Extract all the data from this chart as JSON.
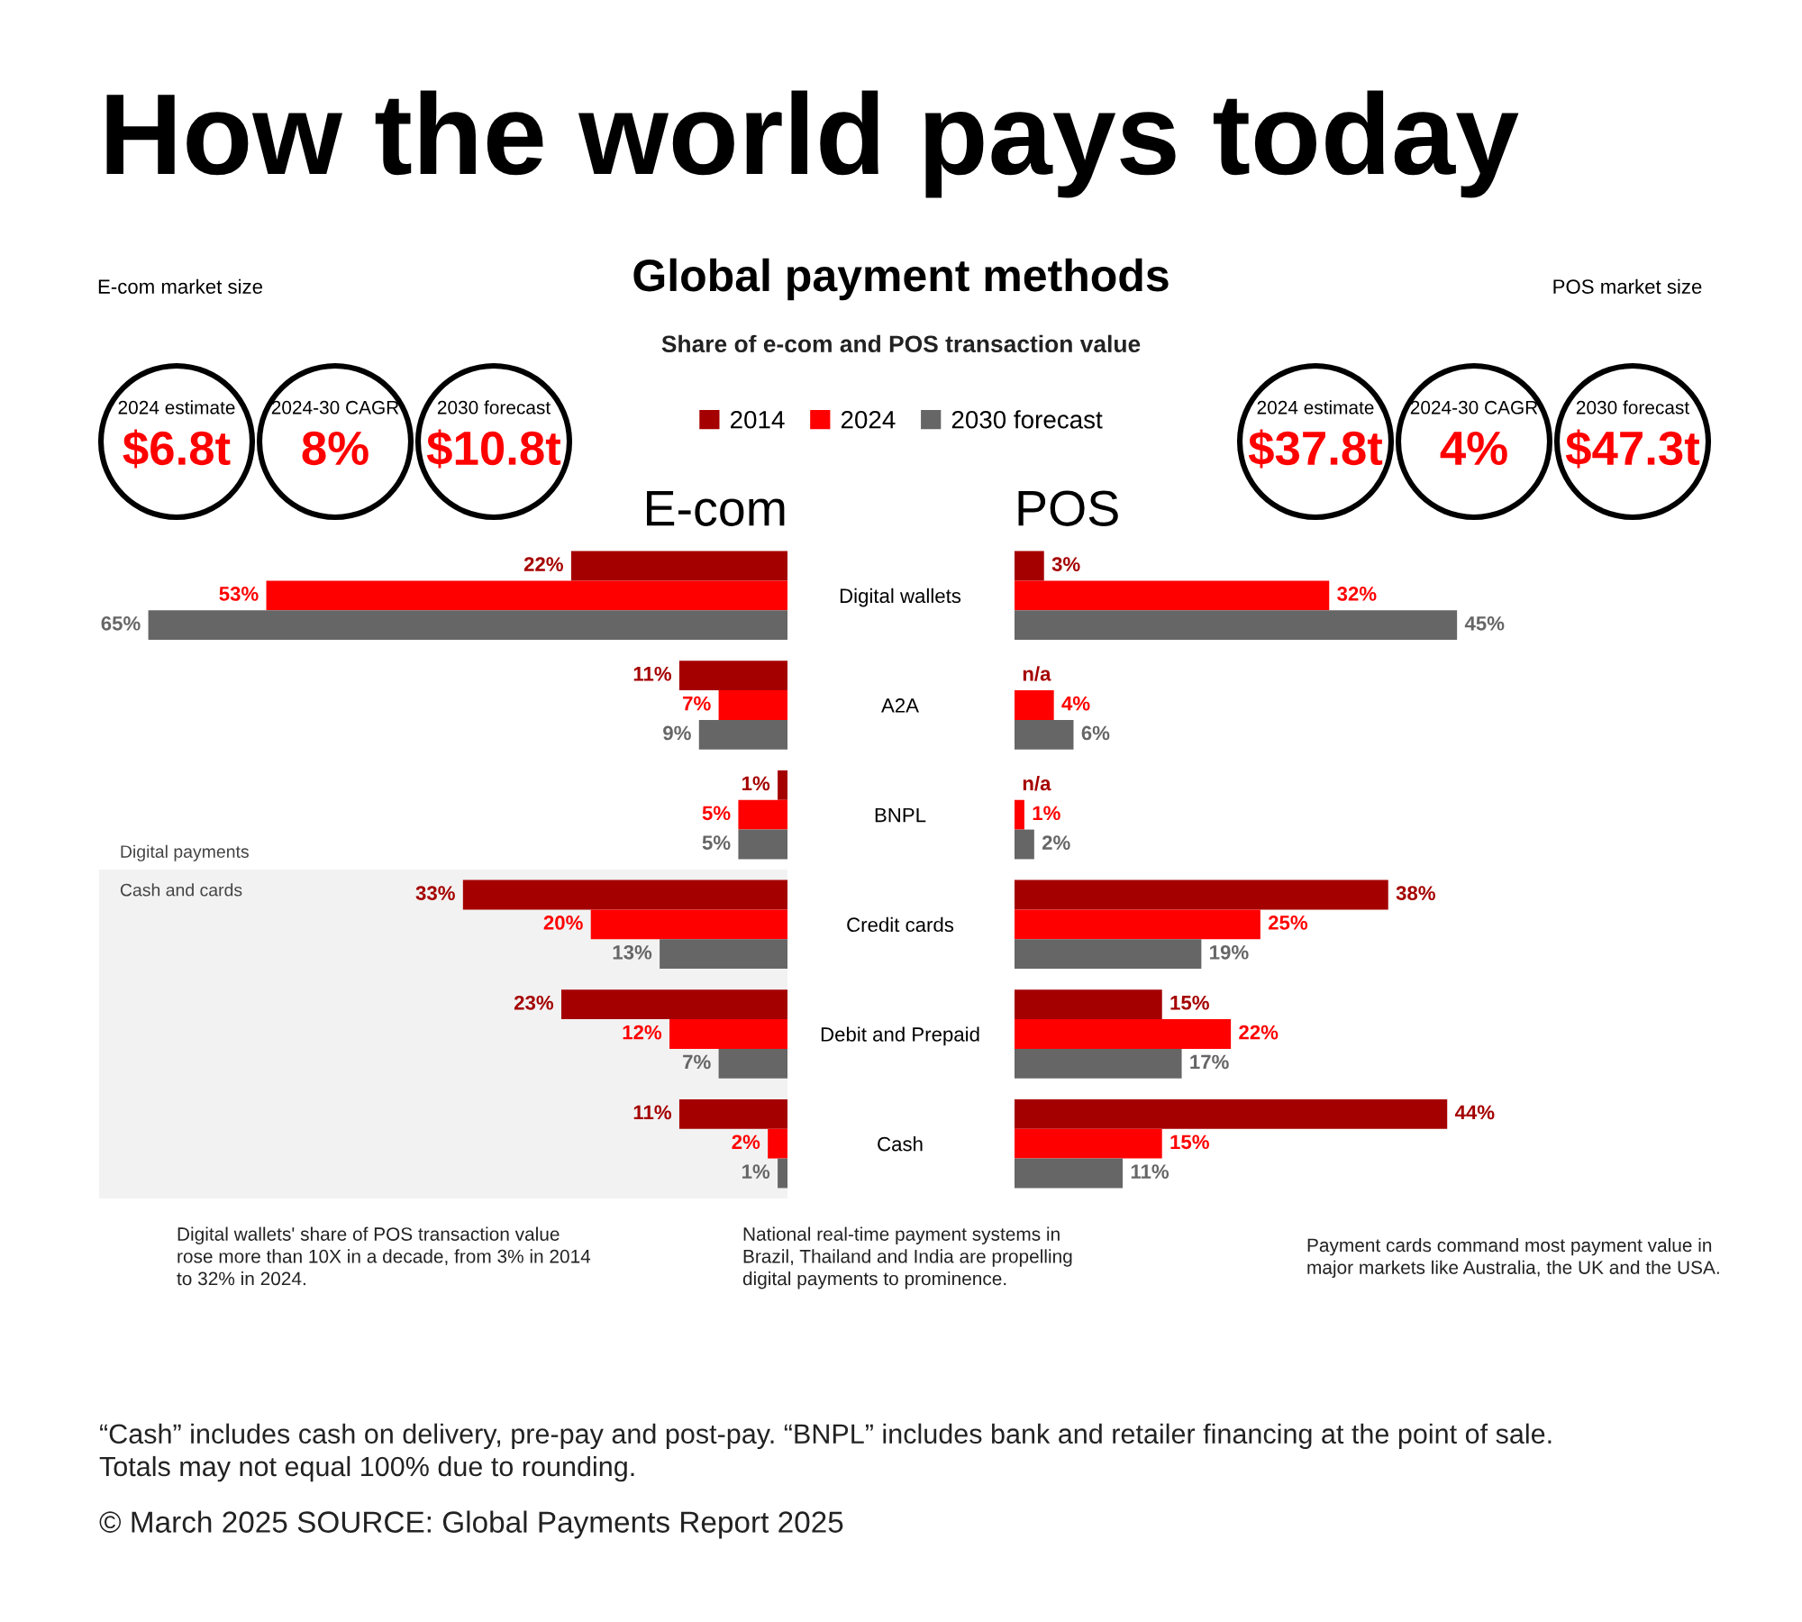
{
  "chart_data": [
    {
      "type": "other",
      "title": "How the world pays today",
      "subtitle": "Global payment methods",
      "annotations": [
        "Share of e-com and POS transaction value",
        "Digital wallets' share of POS transaction value\nrose more than 10X in a decade, from 3% in 2014\nto 32% in 2024.",
        "National real-time payment systems in\nBrazil, Thailand and India are propelling\ndigital payments to prominence.",
        "Payment cards command most payment value in\nmajor markets like Australia, the UK and the USA.",
        "“Cash” includes cash on delivery, pre-pay and post-pay. “BNPL” includes bank and retailer financing at the point of sale.\nTotals may not equal 100% due to rounding.",
        "© March 2025 SOURCE: Global Payments Report 2025"
      ]
    },
    {
      "type": "bar",
      "orientation": "horizontal",
      "title": "E-com",
      "categories": [
        "Digital wallets",
        "A2A",
        "BNPL",
        "Credit cards",
        "Debit and Prepaid",
        "Cash"
      ],
      "series": [
        {
          "name": "2014",
          "color": "#a50000",
          "values": [
            22,
            11,
            1,
            33,
            23,
            11
          ],
          "value_labels": [
            "22%",
            "11%",
            "1%",
            "33%",
            "23%",
            "11%"
          ]
        },
        {
          "name": "2024",
          "color": "#ff0000",
          "values": [
            53,
            7,
            5,
            20,
            12,
            2
          ],
          "value_labels": [
            "53%",
            "7%",
            "5%",
            "20%",
            "12%",
            "2%"
          ]
        },
        {
          "name": "2030 forecast",
          "color": "#666666",
          "values": [
            65,
            9,
            5,
            13,
            7,
            1
          ],
          "value_labels": [
            "65%",
            "9%",
            "5%",
            "13%",
            "7%",
            "1%"
          ]
        }
      ],
      "xlim": [
        70,
        0
      ],
      "tick_labels": "y",
      "legend": "top",
      "bands": [
        {
          "axis": "y",
          "from": "Credit cards",
          "to": "Cash",
          "label": "Cash and cards",
          "color": "#f2f2f2"
        }
      ],
      "annotations": [
        "E-com market size",
        "2024 estimate",
        "$6.8t",
        "2024-30 CAGR",
        "8%",
        "2030 forecast",
        "$10.8t",
        "Digital payments"
      ]
    },
    {
      "type": "bar",
      "orientation": "horizontal",
      "title": "POS",
      "categories": [
        null,
        null,
        null,
        null,
        null,
        null
      ],
      "series": [
        {
          "color": "#a50000",
          "values": [
            3,
            null,
            null,
            38,
            15,
            44
          ],
          "value_labels": [
            "3%",
            "n/a",
            "n/a",
            "38%",
            "15%",
            "44%"
          ]
        },
        {
          "color": "#ff0000",
          "values": [
            32,
            4,
            1,
            25,
            22,
            15
          ],
          "value_labels": [
            "32%",
            "4%",
            "1%",
            "25%",
            "22%",
            "15%"
          ]
        },
        {
          "color": "#666666",
          "values": [
            45,
            6,
            2,
            19,
            17,
            11
          ],
          "value_labels": [
            "45%",
            "6%",
            "2%",
            "19%",
            "17%",
            "11%"
          ]
        }
      ],
      "tick_labels": false,
      "annotations": [
        "POS market size",
        "2024 estimate",
        "$37.8t",
        "2024-30 CAGR",
        "4%",
        "2030 forecast",
        "$47.3t"
      ]
    }
  ]
}
